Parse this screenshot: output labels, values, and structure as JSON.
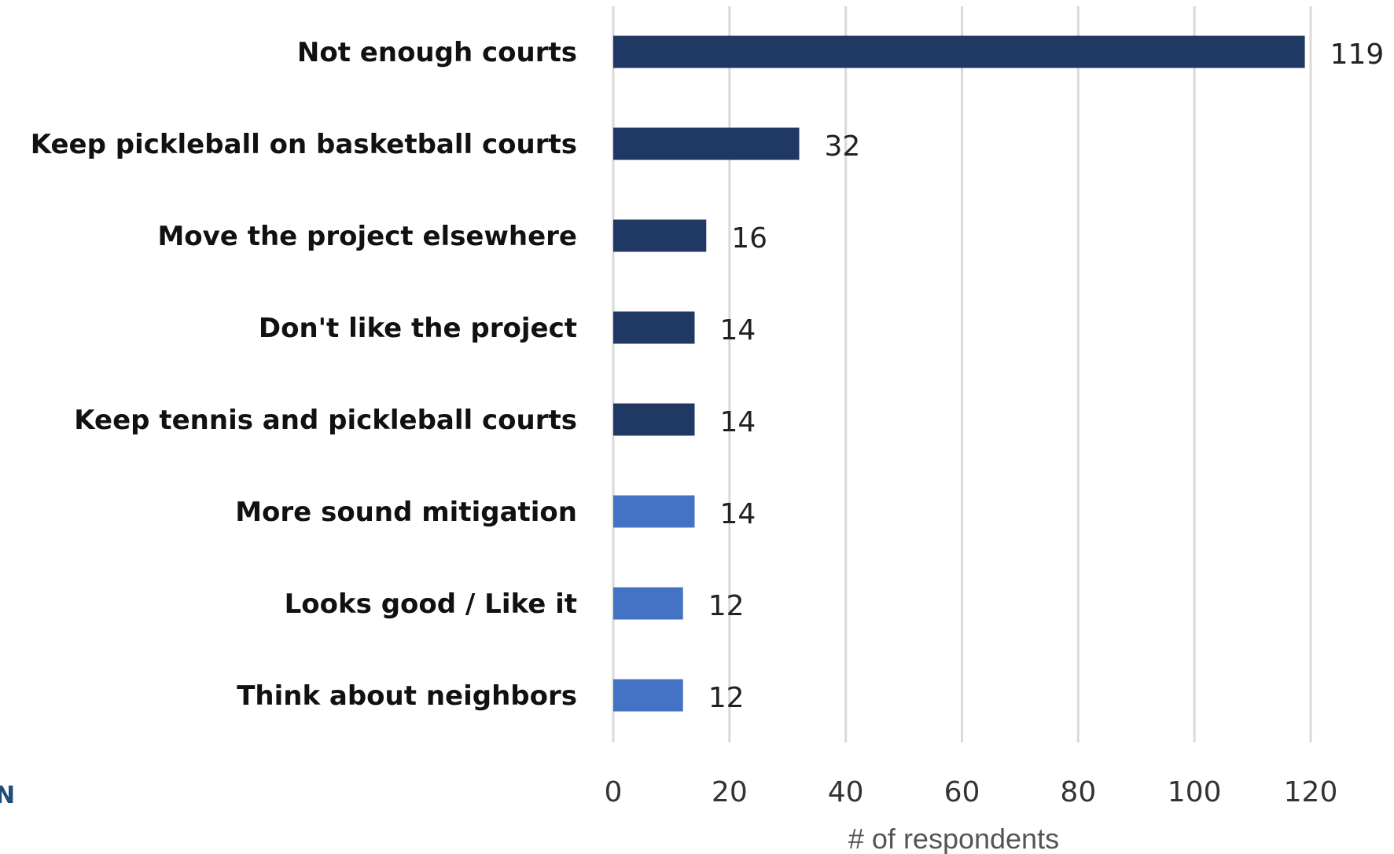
{
  "chart_data": {
    "type": "bar",
    "orientation": "horizontal",
    "categories": [
      "Not enough courts",
      "Keep pickleball on basketball courts",
      "Move the project elsewhere",
      "Don't like the project",
      "Keep tennis and pickleball courts",
      "More sound mitigation",
      "Looks good / Like it",
      "Think about neighbors"
    ],
    "values": [
      119,
      32,
      16,
      14,
      14,
      14,
      12,
      12
    ],
    "bar_colors": [
      "#1f3864",
      "#1f3864",
      "#1f3864",
      "#1f3864",
      "#1f3864",
      "#4472c4",
      "#4472c4",
      "#4472c4"
    ],
    "xlabel": "# of respondents",
    "xlim": [
      0,
      120
    ],
    "xticks": [
      0,
      20,
      40,
      60,
      80,
      100,
      120
    ],
    "grid": true,
    "data_labels": true
  },
  "edge_fragment": "N"
}
